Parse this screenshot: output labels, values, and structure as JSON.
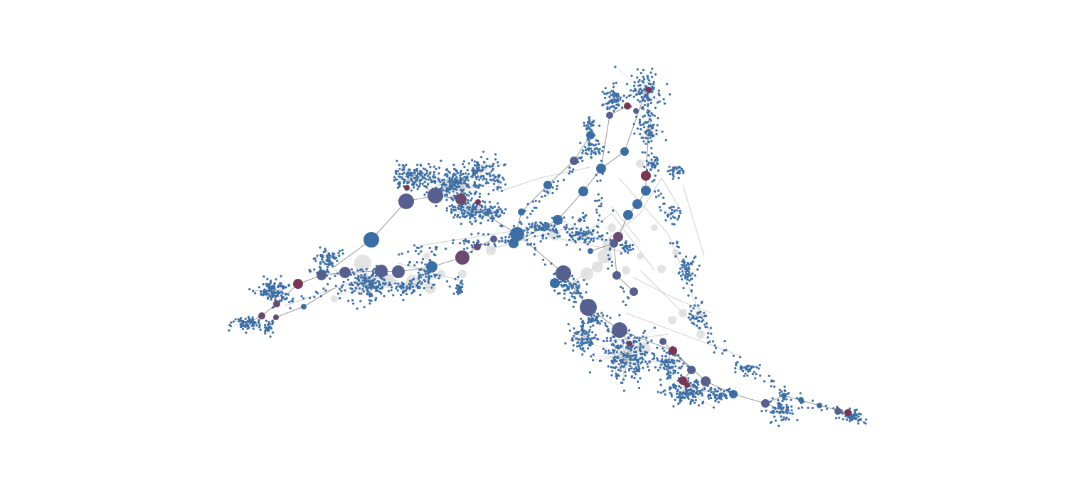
{
  "figure": {
    "kind": "network-graph",
    "labels_shown": false,
    "background": "#ffffff"
  },
  "colors": {
    "leaf_node": "#3b6fa8",
    "hub_node_blue": "#3a6ea5",
    "hub_node_slate": "#55608f",
    "hub_node_purple": "#6b4a72",
    "hub_node_crimson": "#7a3553",
    "backbone_edge": "#8c8c8c",
    "faint_edge": "#d2d2d2",
    "ghost_node": "#dadada"
  },
  "legend": null
}
